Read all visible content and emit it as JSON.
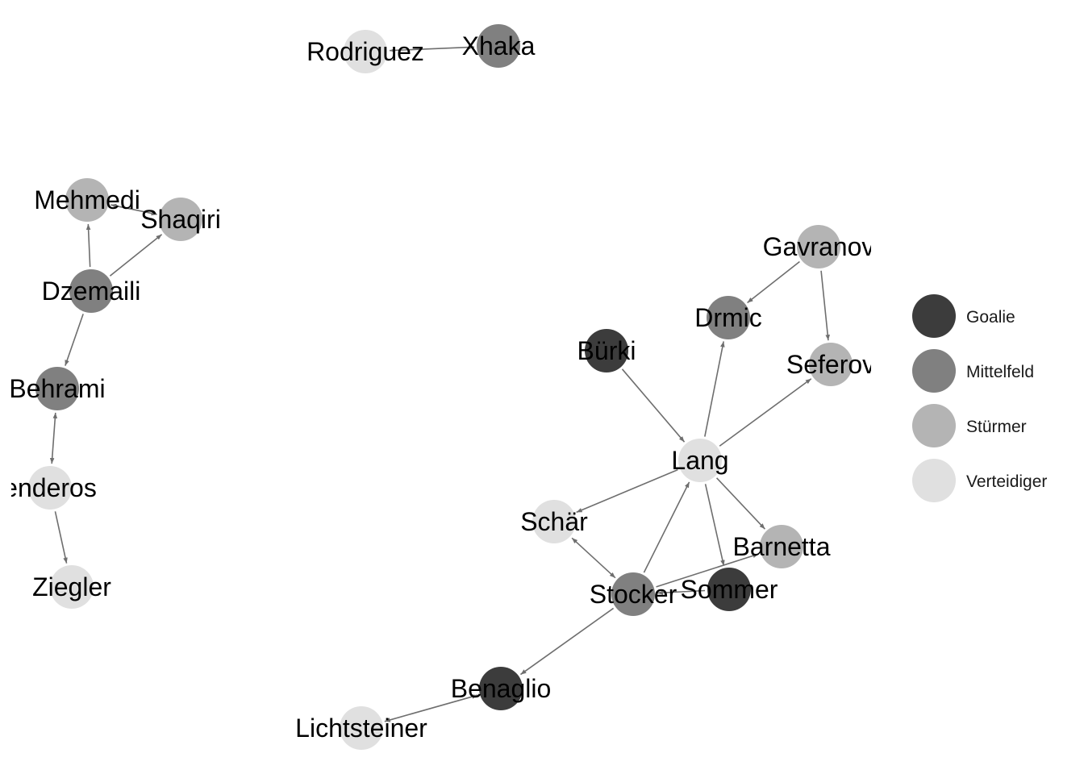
{
  "legend": {
    "items": [
      {
        "key": "Goalie",
        "label": "Goalie",
        "color": "#3c3c3c"
      },
      {
        "key": "Mittelfeld",
        "label": "Mittelfeld",
        "color": "#808080"
      },
      {
        "key": "Stürmer",
        "label": "Stürmer",
        "color": "#b4b4b4"
      },
      {
        "key": "Verteidiger",
        "label": "Verteidiger",
        "color": "#e0e0e0"
      }
    ]
  },
  "nodes": [
    {
      "id": "rodriguez",
      "label": "Rodriguez",
      "group": "Verteidiger"
    },
    {
      "id": "xhaka",
      "label": "Xhaka",
      "group": "Mittelfeld"
    },
    {
      "id": "mehmedi",
      "label": "Mehmedi",
      "group": "Stürmer"
    },
    {
      "id": "shaqiri",
      "label": "Shaqiri",
      "group": "Stürmer"
    },
    {
      "id": "dzemaili",
      "label": "Dzemaili",
      "group": "Mittelfeld"
    },
    {
      "id": "behrami",
      "label": "Behrami",
      "group": "Mittelfeld"
    },
    {
      "id": "djourou",
      "label": "enderos",
      "group": "Verteidiger"
    },
    {
      "id": "ziegler",
      "label": "Ziegler",
      "group": "Verteidiger"
    },
    {
      "id": "gavranovic",
      "label": "Gavranov",
      "group": "Stürmer"
    },
    {
      "id": "drmic",
      "label": "Drmic",
      "group": "Mittelfeld"
    },
    {
      "id": "buerki",
      "label": "Bürki",
      "group": "Goalie"
    },
    {
      "id": "seferovic",
      "label": "Seferov",
      "group": "Stürmer"
    },
    {
      "id": "lang",
      "label": "Lang",
      "group": "Verteidiger"
    },
    {
      "id": "schaer",
      "label": "Schär",
      "group": "Verteidiger"
    },
    {
      "id": "barnetta",
      "label": "Barnetta",
      "group": "Stürmer"
    },
    {
      "id": "stocker",
      "label": "Stocker",
      "group": "Mittelfeld"
    },
    {
      "id": "sommer",
      "label": "Sommer",
      "group": "Goalie"
    },
    {
      "id": "benaglio",
      "label": "Benaglio",
      "group": "Goalie"
    },
    {
      "id": "lichtsteiner",
      "label": "Lichtsteiner",
      "group": "Verteidiger"
    }
  ],
  "edges": [
    {
      "source": "rodriguez",
      "target": "xhaka",
      "both": true
    },
    {
      "source": "mehmedi",
      "target": "shaqiri",
      "both": true
    },
    {
      "source": "dzemaili",
      "target": "mehmedi",
      "both": false
    },
    {
      "source": "dzemaili",
      "target": "shaqiri",
      "both": false
    },
    {
      "source": "dzemaili",
      "target": "behrami",
      "both": false
    },
    {
      "source": "behrami",
      "target": "djourou",
      "both": true
    },
    {
      "source": "djourou",
      "target": "ziegler",
      "both": false
    },
    {
      "source": "gavranovic",
      "target": "drmic",
      "both": false
    },
    {
      "source": "gavranovic",
      "target": "seferovic",
      "both": false
    },
    {
      "source": "buerki",
      "target": "lang",
      "both": false
    },
    {
      "source": "lang",
      "target": "drmic",
      "both": false
    },
    {
      "source": "lang",
      "target": "seferovic",
      "both": false
    },
    {
      "source": "lang",
      "target": "schaer",
      "both": false
    },
    {
      "source": "lang",
      "target": "barnetta",
      "both": false
    },
    {
      "source": "lang",
      "target": "sommer",
      "both": false
    },
    {
      "source": "stocker",
      "target": "lang",
      "both": false
    },
    {
      "source": "schaer",
      "target": "stocker",
      "both": true
    },
    {
      "source": "stocker",
      "target": "barnetta",
      "both": false
    },
    {
      "source": "sommer",
      "target": "stocker",
      "both": false
    },
    {
      "source": "stocker",
      "target": "benaglio",
      "both": false
    },
    {
      "source": "lichtsteiner",
      "target": "benaglio",
      "both": true
    }
  ]
}
